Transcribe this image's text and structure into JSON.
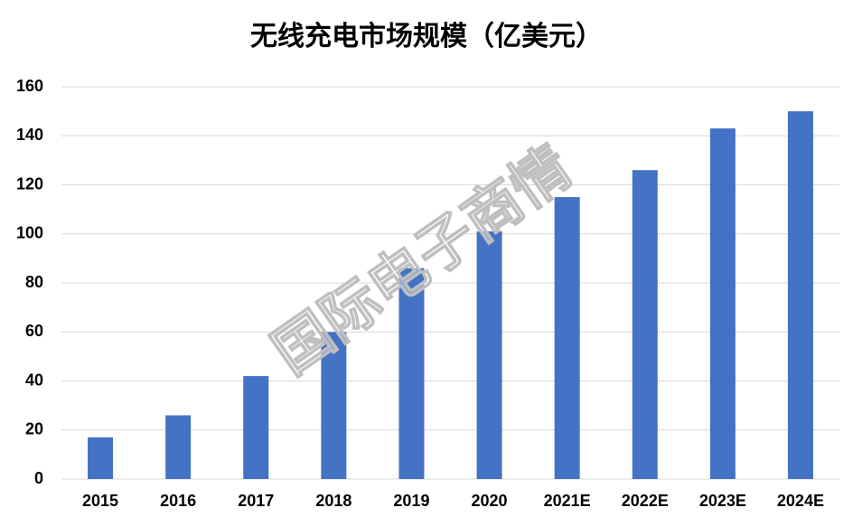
{
  "chart_data": {
    "type": "bar",
    "title": "无线充电市场规模（亿美元）",
    "watermark": "国际电子商情",
    "categories": [
      "2015",
      "2016",
      "2017",
      "2018",
      "2019",
      "2020",
      "2021E",
      "2022E",
      "2023E",
      "2024E"
    ],
    "values": [
      17,
      26,
      42,
      60,
      86,
      101,
      115,
      126,
      143,
      150
    ],
    "color": "#4472c4",
    "ylim": [
      0,
      160
    ],
    "yticks": [
      0,
      20,
      40,
      60,
      80,
      100,
      120,
      140,
      160
    ],
    "grid": true
  }
}
